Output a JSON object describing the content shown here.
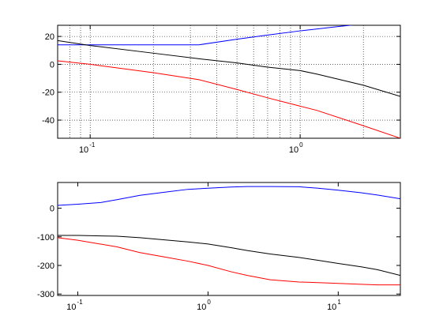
{
  "chart_data": [
    {
      "type": "line",
      "title": "",
      "xlabel": "",
      "ylabel": "",
      "xscale": "log",
      "xlim": [
        0.07,
        3.0
      ],
      "ylim": [
        -53,
        28
      ],
      "grid": true,
      "yticks": [
        20,
        0,
        -20,
        -40
      ],
      "ytick_labels": [
        "20",
        "0",
        "-20",
        "-40"
      ],
      "xticks": [
        0.1,
        1
      ],
      "xtick_labels": [
        {
          "base": "10",
          "exp": "-1"
        },
        {
          "base": "10",
          "exp": "0"
        }
      ],
      "series": [
        {
          "color": "#0000ff",
          "points": [
            [
              0.07,
              14
            ],
            [
              0.1,
              14
            ],
            [
              0.2,
              14
            ],
            [
              0.33,
              14
            ],
            [
              0.5,
              18
            ],
            [
              0.7,
              21
            ],
            [
              1.0,
              24
            ],
            [
              1.5,
              27
            ],
            [
              2.0,
              29
            ],
            [
              3.0,
              32
            ]
          ]
        },
        {
          "color": "#000000",
          "points": [
            [
              0.07,
              17
            ],
            [
              0.1,
              13.5
            ],
            [
              0.2,
              8
            ],
            [
              0.33,
              4
            ],
            [
              0.5,
              1
            ],
            [
              0.7,
              -2
            ],
            [
              1.0,
              -4.5
            ],
            [
              1.2,
              -7
            ],
            [
              2.0,
              -15
            ],
            [
              3.0,
              -23
            ]
          ]
        },
        {
          "color": "#ff0000",
          "points": [
            [
              0.07,
              2.5
            ],
            [
              0.1,
              0
            ],
            [
              0.2,
              -6
            ],
            [
              0.33,
              -11
            ],
            [
              0.5,
              -18
            ],
            [
              0.7,
              -24
            ],
            [
              1.0,
              -30
            ],
            [
              1.2,
              -33
            ],
            [
              2.0,
              -44
            ],
            [
              3.0,
              -53
            ]
          ]
        }
      ]
    },
    {
      "type": "line",
      "title": "",
      "xlabel": "",
      "ylabel": "",
      "xscale": "log",
      "xlim": [
        0.07,
        30
      ],
      "ylim": [
        -305,
        90
      ],
      "grid": false,
      "yticks": [
        0,
        -100,
        -200,
        -300
      ],
      "ytick_labels": [
        "0",
        "-100",
        "-200",
        "-300"
      ],
      "xticks": [
        0.1,
        1,
        10
      ],
      "xtick_labels": [
        {
          "base": "10",
          "exp": "-1"
        },
        {
          "base": "10",
          "exp": "0"
        },
        {
          "base": "10",
          "exp": "1"
        }
      ],
      "series": [
        {
          "color": "#0000ff",
          "points": [
            [
              0.07,
              10
            ],
            [
              0.1,
              14
            ],
            [
              0.15,
              20
            ],
            [
              0.2,
              30
            ],
            [
              0.3,
              45
            ],
            [
              0.5,
              58
            ],
            [
              0.7,
              66
            ],
            [
              1.0,
              70
            ],
            [
              1.5,
              74
            ],
            [
              2.0,
              76
            ],
            [
              3.0,
              76
            ],
            [
              5.0,
              75
            ],
            [
              7.0,
              70
            ],
            [
              10,
              63
            ],
            [
              15,
              54
            ],
            [
              20,
              46
            ],
            [
              30,
              33
            ]
          ]
        },
        {
          "color": "#000000",
          "points": [
            [
              0.07,
              -95
            ],
            [
              0.1,
              -95
            ],
            [
              0.2,
              -98
            ],
            [
              0.3,
              -103
            ],
            [
              0.5,
              -112
            ],
            [
              0.7,
              -118
            ],
            [
              1.0,
              -125
            ],
            [
              1.5,
              -138
            ],
            [
              2.0,
              -148
            ],
            [
              3.0,
              -160
            ],
            [
              5.0,
              -172
            ],
            [
              7.0,
              -182
            ],
            [
              10,
              -193
            ],
            [
              15,
              -205
            ],
            [
              20,
              -215
            ],
            [
              30,
              -235
            ]
          ]
        },
        {
          "color": "#ff0000",
          "points": [
            [
              0.07,
              -103
            ],
            [
              0.1,
              -112
            ],
            [
              0.2,
              -135
            ],
            [
              0.3,
              -155
            ],
            [
              0.5,
              -173
            ],
            [
              0.7,
              -185
            ],
            [
              1.0,
              -200
            ],
            [
              1.5,
              -222
            ],
            [
              2.0,
              -235
            ],
            [
              3.0,
              -250
            ],
            [
              5.0,
              -258
            ],
            [
              7.0,
              -260
            ],
            [
              10,
              -263
            ],
            [
              15,
              -266
            ],
            [
              20,
              -268
            ],
            [
              30,
              -268
            ]
          ]
        }
      ]
    }
  ]
}
